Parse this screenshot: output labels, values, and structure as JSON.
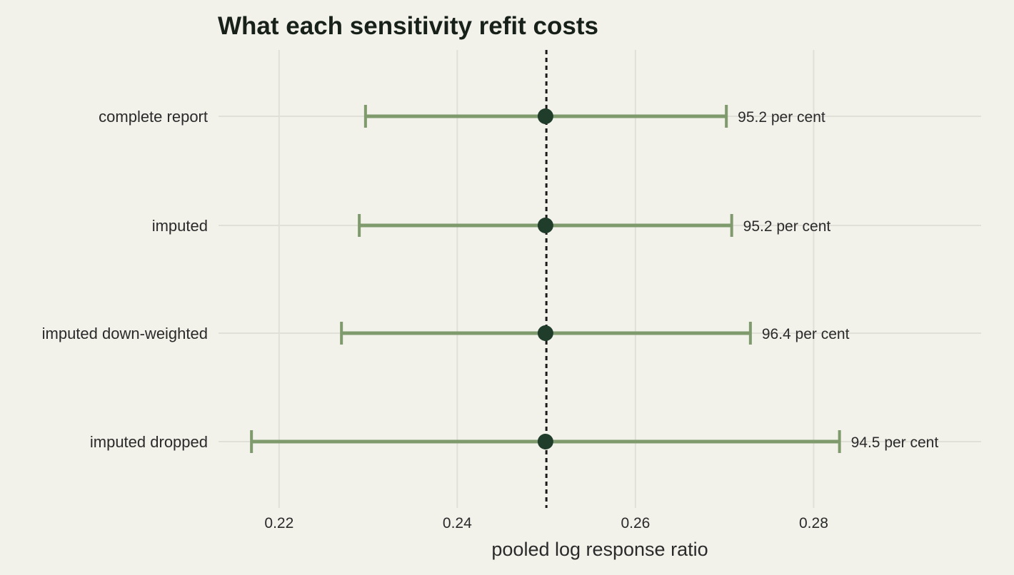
{
  "chart_data": {
    "type": "scatter",
    "subtype": "forest-plot",
    "title": "What each sensitivity refit costs",
    "xlabel": "pooled log response ratio",
    "ylabel": "",
    "xlim": [
      0.2132,
      0.2988
    ],
    "xticks": [
      0.22,
      0.24,
      0.26,
      0.28
    ],
    "xtick_labels": [
      "0.22",
      "0.24",
      "0.26",
      "0.28"
    ],
    "grid": true,
    "legend": "none",
    "reference_line": {
      "x": 0.25,
      "style": "dotted",
      "color": "#1a1a1a"
    },
    "categories": [
      "complete report",
      "imputed",
      "imputed down-weighted",
      "imputed dropped"
    ],
    "series": [
      {
        "estimate": [
          0.2499,
          0.2499,
          0.2499,
          0.2499
        ],
        "lower": [
          0.2297,
          0.229,
          0.227,
          0.2169
        ],
        "upper": [
          0.2702,
          0.2708,
          0.2729,
          0.2829
        ],
        "labels": [
          "95.2 per cent",
          "95.2 per cent",
          "96.4 per cent",
          "94.5 per cent"
        ]
      }
    ],
    "colors": {
      "background": "#f2f1ea",
      "grid": "#e0e0d8",
      "interval": "#7f9a6c",
      "point": "#1f3d2a",
      "reference": "#1a1a1a"
    }
  }
}
